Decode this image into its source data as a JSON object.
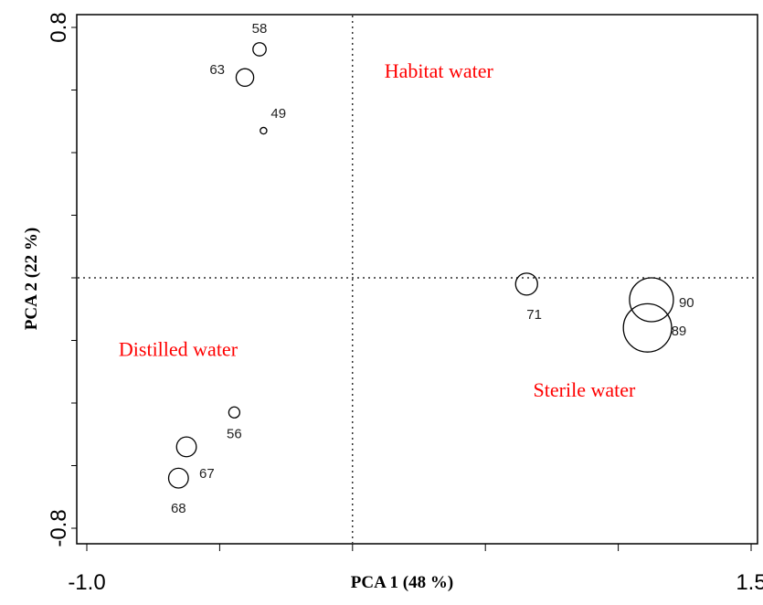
{
  "chart_data": {
    "type": "scatter",
    "xlabel": "PCA 1 (48 %)",
    "ylabel": "PCA 2 (22 %)",
    "xlim": [
      -1.0,
      1.5
    ],
    "ylim": [
      -0.8,
      0.8
    ],
    "x_ticks": [
      -1.0,
      1.5
    ],
    "x_tick_labels": [
      "-1.0",
      "1.5"
    ],
    "y_ticks": [
      0.8,
      -0.8
    ],
    "y_tick_labels": [
      "0.8",
      "-0.8"
    ],
    "reference_lines": {
      "x": 0,
      "y": 0
    },
    "group_labels": [
      {
        "text": "Habitat water",
        "x": 0.12,
        "y": 0.64
      },
      {
        "text": "Distilled water",
        "x": -0.88,
        "y": -0.25
      },
      {
        "text": "Sterile water",
        "x": 0.68,
        "y": -0.38
      }
    ],
    "points": [
      {
        "label": "58",
        "x": -0.35,
        "y": 0.73,
        "size": 0.06
      },
      {
        "label": "63",
        "x": -0.405,
        "y": 0.64,
        "size": 0.08
      },
      {
        "label": "49",
        "x": -0.335,
        "y": 0.47,
        "size": 0.03
      },
      {
        "label": "71",
        "x": 0.655,
        "y": -0.02,
        "size": 0.1
      },
      {
        "label": "90",
        "x": 1.125,
        "y": -0.07,
        "size": 0.2
      },
      {
        "label": "89",
        "x": 1.11,
        "y": -0.16,
        "size": 0.22
      },
      {
        "label": "56",
        "x": -0.445,
        "y": -0.43,
        "size": 0.05
      },
      {
        "label": "67",
        "x": -0.625,
        "y": -0.54,
        "size": 0.09
      },
      {
        "label": "68",
        "x": -0.655,
        "y": -0.64,
        "size": 0.09
      }
    ]
  }
}
